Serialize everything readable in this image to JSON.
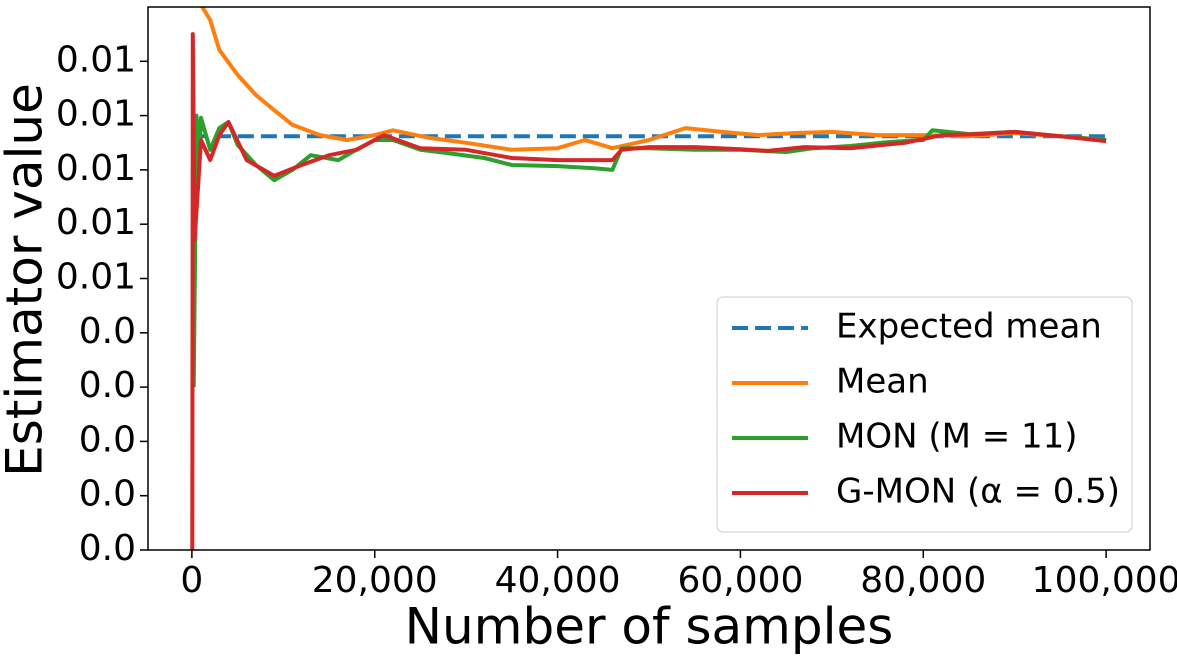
{
  "chart_data": {
    "type": "line",
    "xlabel": "Number of samples",
    "ylabel": "Estimator value",
    "xlim": [
      -4800,
      104800
    ],
    "ylim": [
      0,
      0.01
    ],
    "xticks": [
      0,
      {
        "value": 20000,
        "label": "20,000"
      },
      {
        "value": 40000,
        "label": "40,000"
      },
      {
        "value": 60000,
        "label": "60,000"
      },
      {
        "value": 80000,
        "label": "80,000"
      },
      {
        "value": 100000,
        "label": "100,000"
      }
    ],
    "yticks": [
      {
        "value": 0,
        "label": "0.0"
      },
      {
        "value": 0.001,
        "label": "0.0"
      },
      {
        "value": 0.002,
        "label": "0.0"
      },
      {
        "value": 0.003,
        "label": "0.0"
      },
      {
        "value": 0.004,
        "label": "0.0"
      },
      {
        "value": 0.005,
        "label": "0.01"
      },
      {
        "value": 0.006,
        "label": "0.01"
      },
      {
        "value": 0.007,
        "label": "0.01"
      },
      {
        "value": 0.008,
        "label": "0.01"
      },
      {
        "value": 0.009,
        "label": "0.01"
      }
    ],
    "legend": "lower right",
    "series": [
      {
        "name": "Expected mean",
        "color": "#1f77b4",
        "linestyle": "dashed",
        "x": [
          0,
          100000
        ],
        "values": [
          0.00762,
          0.00762
        ]
      },
      {
        "name": "Mean",
        "color": "#ff7f0e",
        "x": [
          500,
          1000,
          2000,
          3000,
          5000,
          7000,
          9000,
          11000,
          14000,
          17000,
          20000,
          22000,
          26000,
          30000,
          35000,
          40000,
          43000,
          46000,
          50000,
          54000,
          58000,
          62000,
          66000,
          70000,
          75000,
          80000,
          85000,
          90000,
          95000,
          100000
        ],
        "values": [
          0.0105,
          0.01004,
          0.00976,
          0.00921,
          0.00875,
          0.00838,
          0.0081,
          0.00783,
          0.00764,
          0.00755,
          0.00764,
          0.00773,
          0.00759,
          0.0075,
          0.00737,
          0.0074,
          0.00755,
          0.0074,
          0.00755,
          0.00777,
          0.0077,
          0.00764,
          0.00768,
          0.0077,
          0.00764,
          0.00764,
          0.00762,
          0.00768,
          0.00762,
          0.00755
        ]
      },
      {
        "name": "MON (M = 11)",
        "color": "#2ca02c",
        "x": [
          200,
          500,
          800,
          1000,
          2000,
          3000,
          4000,
          5000,
          7000,
          9000,
          11000,
          13000,
          16000,
          18000,
          20000,
          22000,
          25000,
          28000,
          32000,
          35000,
          40000,
          44000,
          46000,
          47000,
          50000,
          55000,
          60000,
          65000,
          68000,
          72000,
          76000,
          80000,
          81000,
          85000,
          90000,
          95000,
          100000
        ],
        "values": [
          0.003,
          0.008,
          0.0072,
          0.00796,
          0.00737,
          0.00777,
          0.00788,
          0.00746,
          0.00709,
          0.00681,
          0.007,
          0.00727,
          0.00718,
          0.00737,
          0.00755,
          0.00755,
          0.00737,
          0.00731,
          0.00722,
          0.00709,
          0.00707,
          0.00703,
          0.007,
          0.0074,
          0.0074,
          0.00737,
          0.00737,
          0.00733,
          0.0074,
          0.00744,
          0.00751,
          0.00755,
          0.00773,
          0.00766,
          0.0077,
          0.00762,
          0.00755
        ]
      },
      {
        "name": "G-MON (α = 0.5)",
        "color": "#d62728",
        "x": [
          50,
          100,
          300,
          600,
          1000,
          2000,
          3000,
          4000,
          6000,
          9000,
          12000,
          15000,
          18000,
          21000,
          25000,
          30000,
          35000,
          40000,
          46000,
          47000,
          50000,
          55000,
          60000,
          63000,
          67000,
          72000,
          78000,
          82000,
          86000,
          90000,
          95000,
          100000
        ],
        "values": [
          0,
          0.0095,
          0.00571,
          0.0065,
          0.00755,
          0.00718,
          0.00764,
          0.00788,
          0.00718,
          0.00689,
          0.00709,
          0.00727,
          0.00737,
          0.00764,
          0.0074,
          0.00737,
          0.00722,
          0.00718,
          0.00718,
          0.00737,
          0.00742,
          0.00742,
          0.00738,
          0.00735,
          0.00742,
          0.0074,
          0.0075,
          0.00764,
          0.00766,
          0.0077,
          0.00762,
          0.00753
        ]
      }
    ]
  }
}
